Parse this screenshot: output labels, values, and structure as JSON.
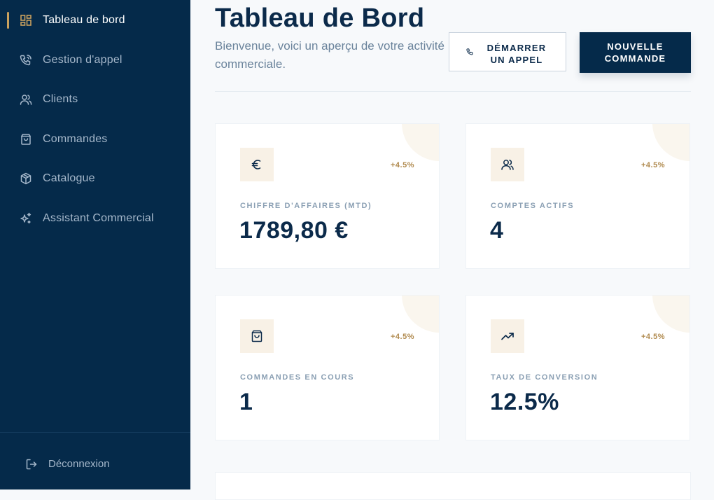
{
  "sidebar": {
    "items": [
      {
        "label": "Tableau de bord",
        "icon": "dashboard-icon",
        "active": true
      },
      {
        "label": "Gestion d'appel",
        "icon": "phone-call-icon"
      },
      {
        "label": "Clients",
        "icon": "users-icon"
      },
      {
        "label": "Commandes",
        "icon": "shopping-bag-icon"
      },
      {
        "label": "Catalogue",
        "icon": "package-icon"
      },
      {
        "label": "Assistant Commercial",
        "icon": "sparkles-icon"
      }
    ],
    "logout_label": "Déconnexion"
  },
  "header": {
    "title": "Tableau de Bord",
    "subtitle": "Bienvenue, voici un aperçu de votre activité commerciale.",
    "call_button": "DÉMARRER UN APPEL",
    "new_order_button": "NOUVELLE COMMANDE"
  },
  "stats": [
    {
      "label": "CHIFFRE D'AFFAIRES (MTD)",
      "value": "1789,80 €",
      "change": "+4.5%",
      "icon": "euro-icon"
    },
    {
      "label": "COMPTES ACTIFS",
      "value": "4",
      "change": "+4.5%",
      "icon": "users-icon"
    },
    {
      "label": "COMMANDES EN COURS",
      "value": "1",
      "change": "+4.5%",
      "icon": "shopping-bag-icon"
    },
    {
      "label": "TAUX DE CONVERSION",
      "value": "12.5%",
      "change": "+4.5%",
      "icon": "trending-up-icon"
    }
  ],
  "colors": {
    "sidebar_bg": "#052a4a",
    "accent": "#c9a15e",
    "primary_text": "#0b2a4a",
    "change_text": "#b08a4e"
  }
}
